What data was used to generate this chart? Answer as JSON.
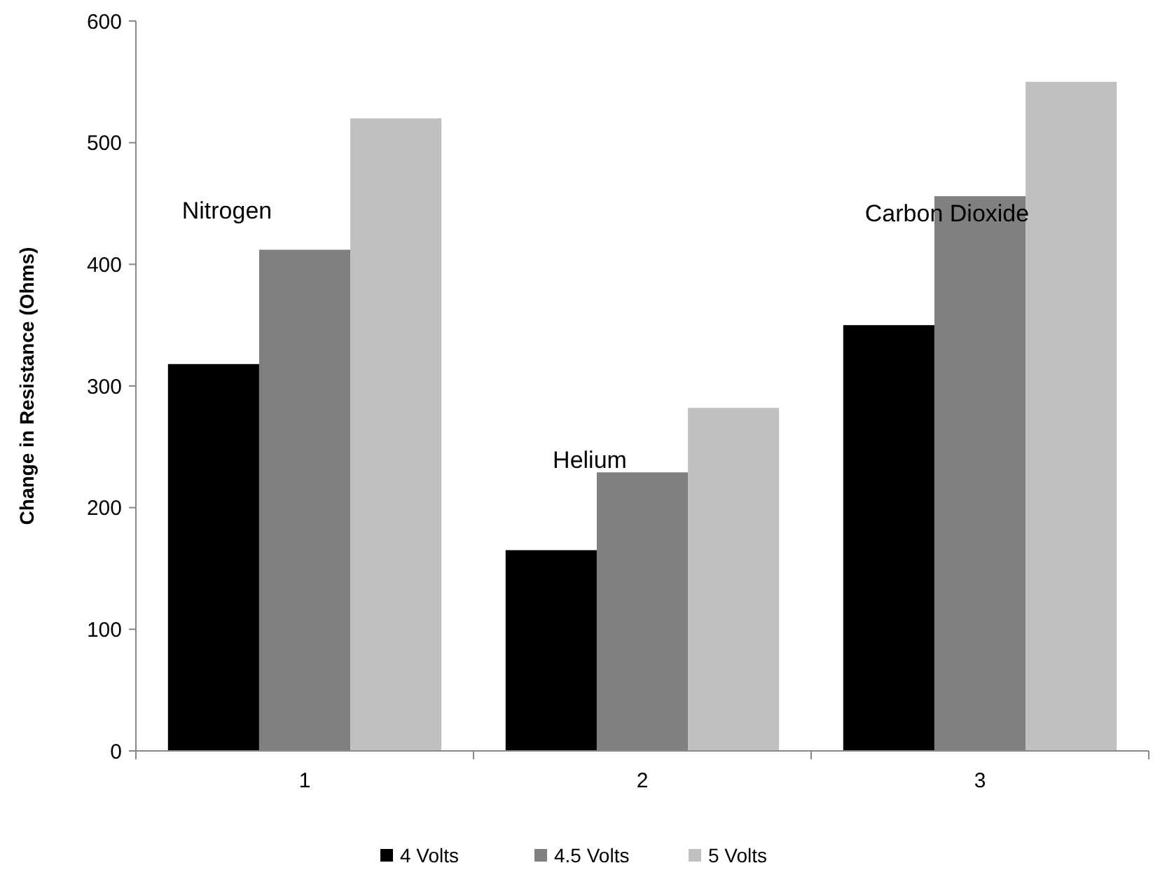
{
  "chart_data": {
    "type": "bar",
    "ylabel": "Change in Resistance (Ohms)",
    "categories": [
      "1",
      "2",
      "3"
    ],
    "series": [
      {
        "name": "4 Volts",
        "color": "#000000",
        "values": [
          318,
          165,
          350
        ]
      },
      {
        "name": "4.5 Volts",
        "color": "#808080",
        "values": [
          412,
          229,
          456
        ]
      },
      {
        "name": "5 Volts",
        "color": "#c0c0c0",
        "values": [
          520,
          282,
          550
        ]
      }
    ],
    "ylim": [
      0,
      600
    ],
    "yticks": [
      0,
      100,
      200,
      300,
      400,
      500,
      600
    ],
    "grid": false,
    "legend": "bottom",
    "annotations": [
      "Nitrogen",
      "Helium",
      "Carbon Dioxide"
    ]
  }
}
